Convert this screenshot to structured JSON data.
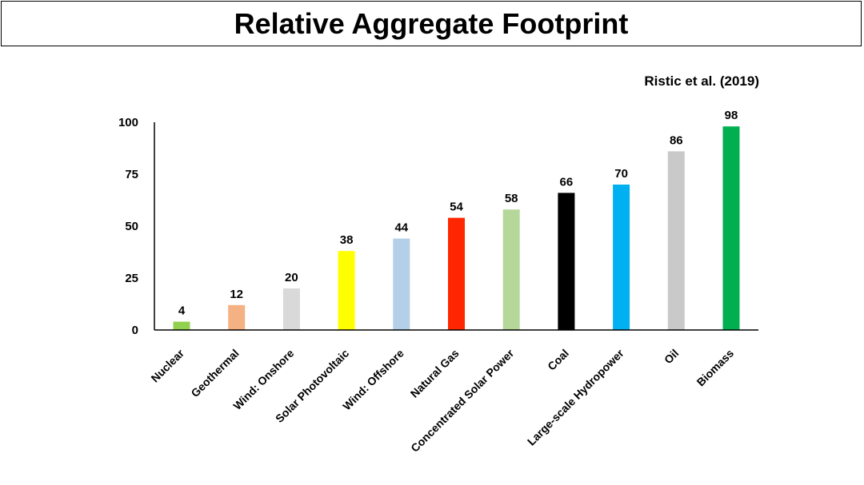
{
  "header": {
    "title": "Relative Aggregate Footprint",
    "source": "Ristic et al. (2019)"
  },
  "chart_data": {
    "type": "bar",
    "title": "Relative Aggregate Footprint",
    "xlabel": "",
    "ylabel": "",
    "ylim": [
      0,
      100
    ],
    "yticks": [
      0,
      25,
      50,
      75,
      100
    ],
    "grid": false,
    "legend": "none",
    "categories": [
      "Nuclear",
      "Geothermal",
      "Wind: Onshore",
      "Solar Photovoltaic",
      "Wind: Offshore",
      "Natural Gas",
      "Concentrated Solar Power",
      "Coal",
      "Large-scale Hydropower",
      "Oil",
      "Biomass"
    ],
    "values": [
      4,
      12,
      20,
      38,
      44,
      54,
      58,
      66,
      70,
      86,
      98
    ],
    "colors": [
      "#92d050",
      "#f4b183",
      "#d9d9d9",
      "#ffff00",
      "#b4cfe8",
      "#ff2600",
      "#b5d89a",
      "#000000",
      "#00b0f0",
      "#c9c9c9",
      "#00b050"
    ]
  }
}
